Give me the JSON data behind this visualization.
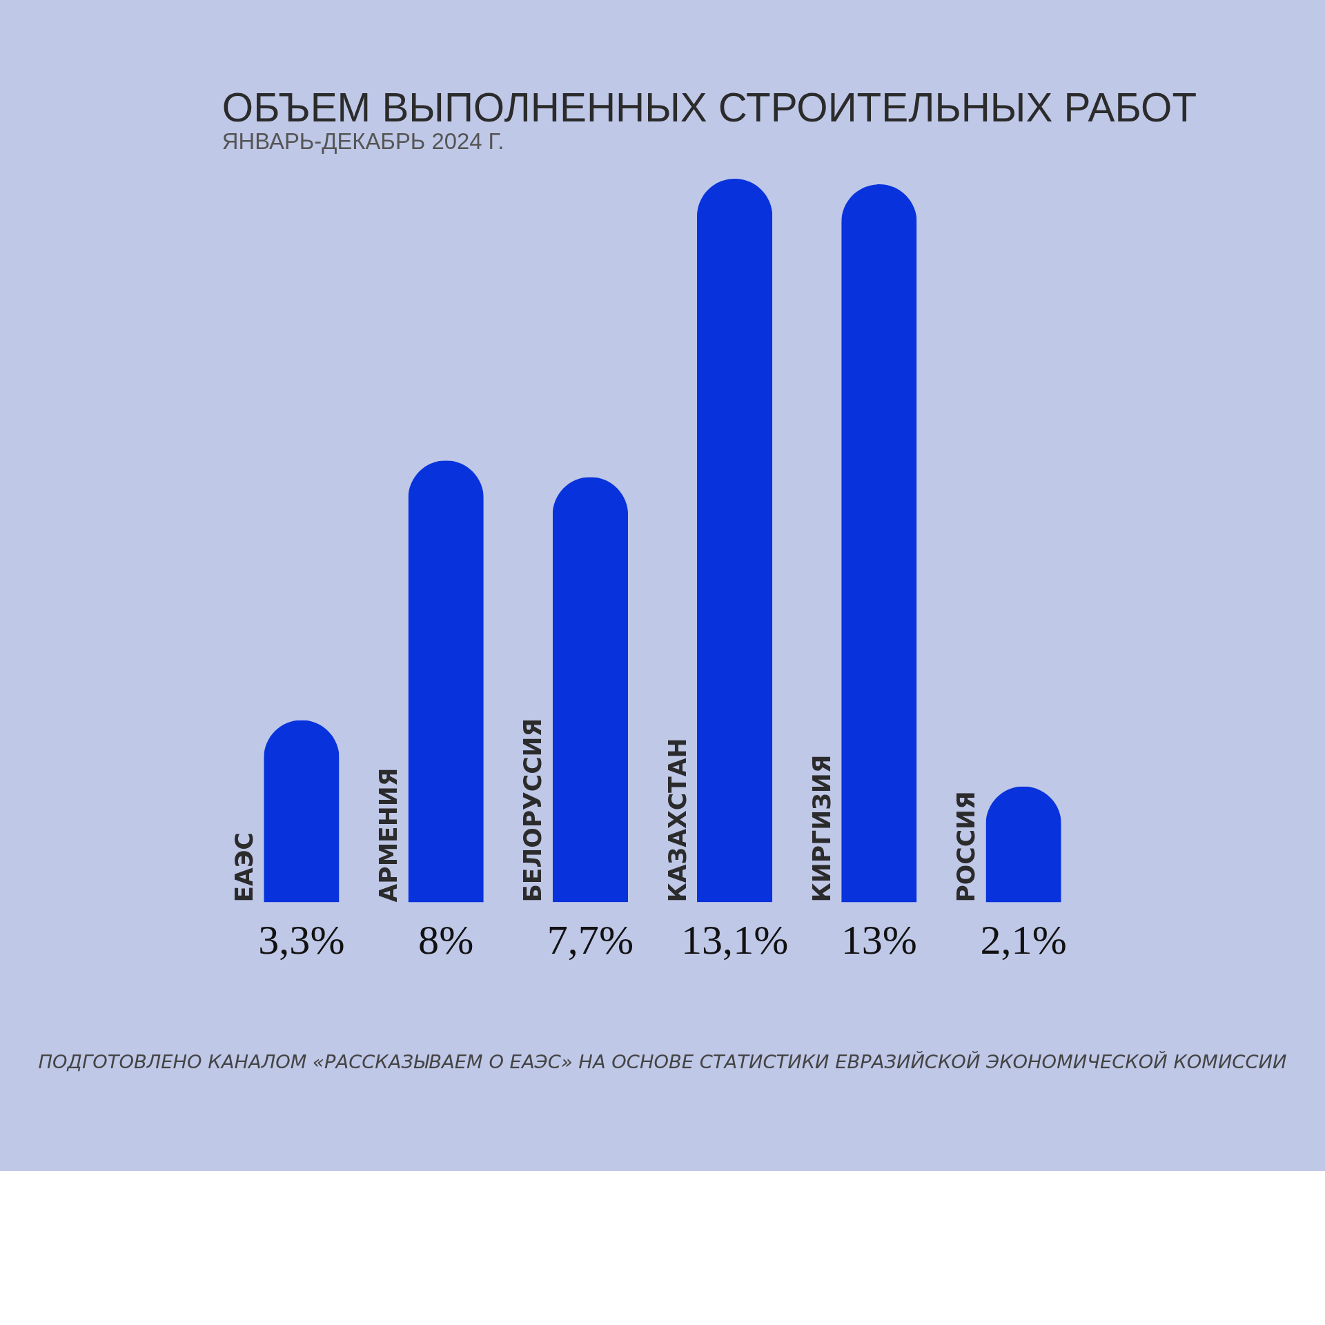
{
  "chart_data": {
    "type": "bar",
    "title": "ОБЪЕМ ВЫПОЛНЕННЫХ СТРОИТЕЛЬНЫХ РАБОТ",
    "subtitle": "ЯНВАРЬ-ДЕКАБРЬ 2024 Г.",
    "categories": [
      "ЕАЭС",
      "АРМЕНИЯ",
      "БЕЛОРУССИЯ",
      "КАЗАХСТАН",
      "КИРГИЗИЯ",
      "РОССИЯ"
    ],
    "values": [
      3.3,
      8,
      7.7,
      13.1,
      13,
      2.1
    ],
    "value_labels": [
      "3,3%",
      "8%",
      "7,7%",
      "13,1%",
      "13%",
      "2,1%"
    ],
    "color": "#0833dc",
    "annotations": [
      "ПОДГОТОВЛЕНО КАНАЛОМ «РАССКАЗЫВАЕМ О ЕАЭС» НА ОСНОВЕ СТАТИСТИКИ ЕВРАЗИЙСКОЙ ЭКОНОМИЧЕСКОЙ КОМИССИИ"
    ]
  }
}
